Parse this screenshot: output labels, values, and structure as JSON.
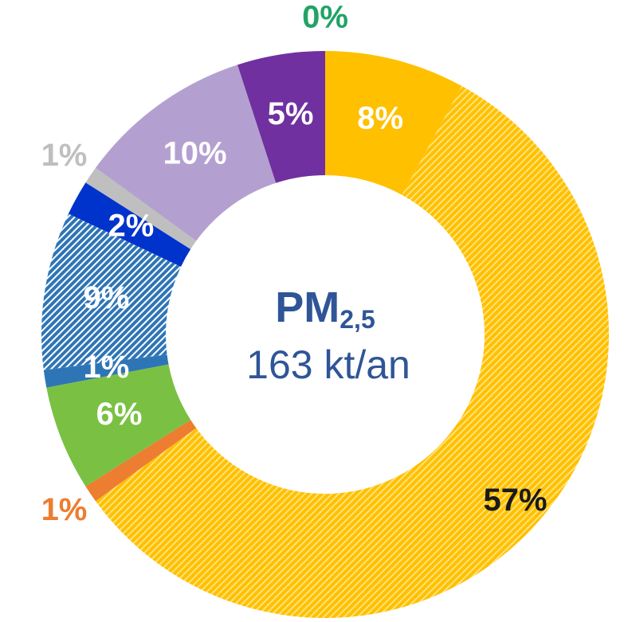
{
  "chart_data": {
    "type": "donut",
    "center_title": "PM",
    "center_subscript": "2,5",
    "center_text": "163 kt/an",
    "values": [
      0,
      8,
      57,
      1,
      6,
      1,
      9,
      2,
      1,
      10,
      5
    ],
    "value_labels": [
      "0%",
      "8%",
      "57%",
      "1%",
      "6%",
      "1%",
      "9%",
      "2%",
      "1%",
      "10%",
      "5%"
    ],
    "colors": [
      "#21a366",
      "#ffc000",
      "#ffc000",
      "#ed7d31",
      "#7ac143",
      "#2e75b6",
      "#2e75b6",
      "#0033cc",
      "#bfbfbf",
      "#b4a0d0",
      "#7030a0"
    ],
    "hatched": [
      false,
      false,
      true,
      false,
      false,
      false,
      true,
      false,
      false,
      false,
      false
    ],
    "label_colors": [
      "#21a366",
      "#ffffff",
      "#1a1a1a",
      "#ed7d31",
      "#ffffff",
      "#ffffff",
      "#ffffff",
      "#ffffff",
      "#bfbfbf",
      "#ffffff",
      "#ffffff"
    ]
  }
}
